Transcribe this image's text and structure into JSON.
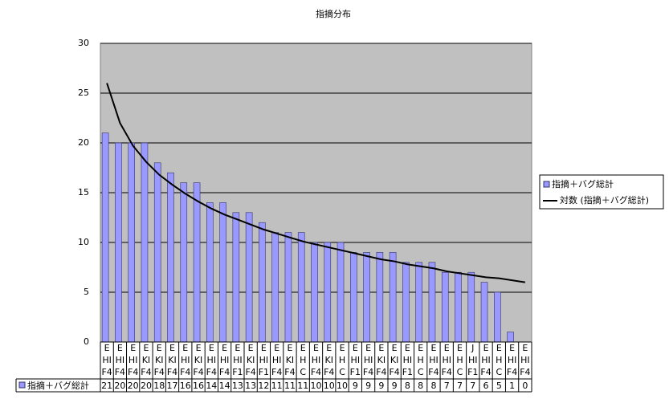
{
  "chart_data": {
    "type": "bar",
    "title": "指摘分布",
    "categories": [
      [
        "E",
        "HI",
        "F4"
      ],
      [
        "E",
        "HI",
        "F4"
      ],
      [
        "E",
        "HI",
        "F4"
      ],
      [
        "E",
        "KI",
        "F4"
      ],
      [
        "E",
        "KI",
        "F4"
      ],
      [
        "E",
        "KI",
        "F4"
      ],
      [
        "E",
        "HI",
        "F4"
      ],
      [
        "E",
        "KI",
        "F4"
      ],
      [
        "E",
        "HI",
        "F4"
      ],
      [
        "E",
        "HI",
        "F4"
      ],
      [
        "E",
        "HI",
        "F1"
      ],
      [
        "E",
        "KI",
        "F4"
      ],
      [
        "E",
        "HI",
        "F1"
      ],
      [
        "E",
        "HI",
        "F4"
      ],
      [
        "E",
        "KI",
        "F4"
      ],
      [
        "E",
        "H",
        "C"
      ],
      [
        "E",
        "HI",
        "F4"
      ],
      [
        "E",
        "KI",
        "F4"
      ],
      [
        "E",
        "H",
        "C"
      ],
      [
        "E",
        "HI",
        "F1"
      ],
      [
        "E",
        "HI",
        "F4"
      ],
      [
        "E",
        "KI",
        "F4"
      ],
      [
        "E",
        "KI",
        "F4"
      ],
      [
        "E",
        "HI",
        "F1"
      ],
      [
        "E",
        "H",
        "C"
      ],
      [
        "E",
        "HI",
        "F4"
      ],
      [
        "E",
        "HI",
        "F4"
      ],
      [
        "E",
        "H",
        "C"
      ],
      [
        "J",
        "HI",
        "F1"
      ],
      [
        "E",
        "HI",
        "F4"
      ],
      [
        "E",
        "H",
        "C"
      ],
      [
        "E",
        "HI",
        "F4"
      ],
      [
        "E",
        "HI",
        "F4"
      ]
    ],
    "series": [
      {
        "name": "指摘＋バグ総計",
        "color": "#9999ff",
        "values": [
          21,
          20,
          20,
          20,
          18,
          17,
          16,
          16,
          14,
          14,
          13,
          13,
          12,
          11,
          11,
          11,
          10,
          10,
          10,
          9,
          9,
          9,
          9,
          8,
          8,
          8,
          7,
          7,
          7,
          6,
          5,
          1,
          0
        ]
      },
      {
        "name": "対数 (指摘＋バグ総計)",
        "color": "#000000",
        "type": "line",
        "values": [
          26.0,
          22.0,
          19.7,
          18.1,
          16.8,
          15.8,
          14.9,
          14.1,
          13.4,
          12.8,
          12.3,
          11.8,
          11.3,
          10.9,
          10.5,
          10.1,
          9.8,
          9.5,
          9.2,
          8.9,
          8.6,
          8.3,
          8.1,
          7.8,
          7.6,
          7.4,
          7.1,
          6.9,
          6.7,
          6.5,
          6.4,
          6.2,
          6.0
        ]
      }
    ],
    "ylim": [
      0,
      30
    ],
    "yticks": [
      0,
      5,
      10,
      15,
      20,
      25,
      30
    ],
    "grid": true,
    "plot_color": "#c0c0c0"
  }
}
